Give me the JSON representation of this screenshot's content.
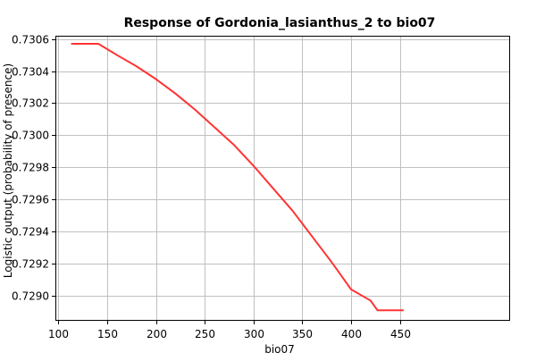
{
  "chart_data": {
    "type": "line",
    "title": "Response of Gordonia_lasianthus_2 to bio07",
    "xlabel": "bio07",
    "ylabel": "Logistic output (probability of presence)",
    "xlim": [
      97,
      562
    ],
    "ylim": [
      0.72885,
      0.73062
    ],
    "x_ticks": [
      100,
      150,
      200,
      250,
      300,
      350,
      400,
      450
    ],
    "x_tick_labels": [
      "100",
      "150",
      "200",
      "250",
      "300",
      "350",
      "400",
      "450"
    ],
    "y_ticks": [
      0.729,
      0.7292,
      0.7294,
      0.7296,
      0.7298,
      0.73,
      0.7302,
      0.7304,
      0.7306
    ],
    "y_tick_labels": [
      "0.7290",
      "0.7292",
      "0.7294",
      "0.7296",
      "0.7298",
      "0.7300",
      "0.7302",
      "0.7304",
      "0.7306"
    ],
    "grid": true,
    "series": [
      {
        "color": "#ff3333",
        "x": [
          114,
          141,
          160,
          180,
          200,
          220,
          240,
          260,
          280,
          300,
          320,
          340,
          360,
          380,
          400,
          420,
          427,
          453
        ],
        "y": [
          0.73057,
          0.73057,
          0.7305,
          0.73043,
          0.73035,
          0.73026,
          0.73016,
          0.73005,
          0.72994,
          0.72981,
          0.72967,
          0.72953,
          0.72937,
          0.72921,
          0.72904,
          0.72897,
          0.72891,
          0.72891
        ]
      }
    ]
  }
}
